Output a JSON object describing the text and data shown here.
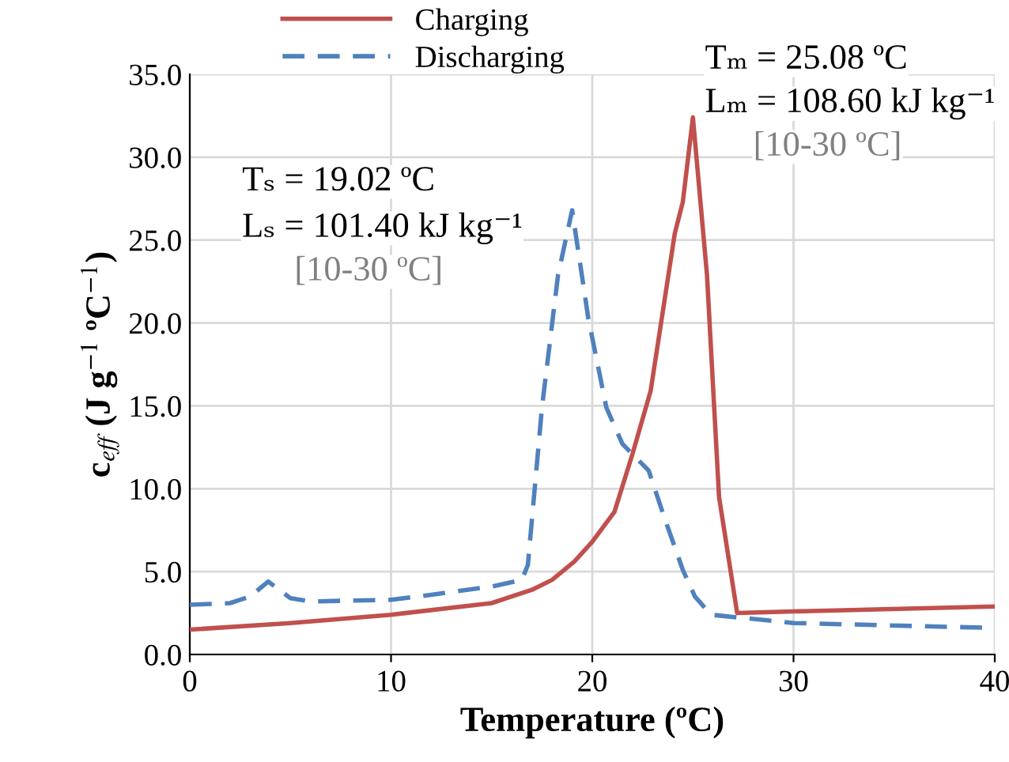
{
  "chart_data": {
    "type": "line",
    "xlabel": "Temperature (ºC)",
    "ylabel": "c$_{eff}$ (J g$^{−1}$ ºC$^{−1}$)",
    "xlim": [
      0,
      40
    ],
    "xticks": [
      0,
      10,
      20,
      30,
      40
    ],
    "ylim": [
      0,
      35
    ],
    "yticks": [
      {
        "value": 0,
        "label": "0.0"
      },
      {
        "value": 5,
        "label": "5.0"
      },
      {
        "value": 10,
        "label": "10.0"
      },
      {
        "value": 15,
        "label": "15.0"
      },
      {
        "value": 20,
        "label": "20.0"
      },
      {
        "value": 25,
        "label": "25.0"
      },
      {
        "value": 30,
        "label": "30.0"
      },
      {
        "value": 35,
        "label": "35.0"
      }
    ],
    "grid": true,
    "legend": "top left",
    "series": [
      {
        "name": "Charging",
        "color": "#c0504d",
        "line_style": "solid",
        "x": [
          0,
          5,
          10,
          15,
          17,
          18,
          19.1,
          20,
          21.1,
          22,
          22.9,
          24.1,
          24.5,
          25,
          25.7,
          26.3,
          27.2,
          30,
          40
        ],
        "values": [
          1.5,
          1.9,
          2.4,
          3.1,
          3.9,
          4.5,
          5.6,
          6.8,
          8.6,
          12.1,
          15.9,
          25.4,
          27.3,
          32.4,
          22.9,
          9.5,
          2.5,
          2.6,
          2.9
        ]
      },
      {
        "name": "Discharging",
        "color": "#4f81bd",
        "line_style": "dashed",
        "x": [
          0,
          2,
          3,
          3.9,
          5,
          6,
          10,
          12,
          15,
          16.5,
          16.8,
          17.5,
          18.3,
          19,
          19.8,
          20.7,
          21.5,
          22.8,
          23.6,
          24.5,
          25.1,
          25.9,
          30,
          40
        ],
        "values": [
          3.0,
          3.1,
          3.5,
          4.4,
          3.4,
          3.2,
          3.3,
          3.6,
          4.1,
          4.5,
          5.4,
          14.9,
          22.9,
          26.8,
          20.3,
          14.9,
          12.7,
          11.1,
          8.2,
          5.1,
          3.5,
          2.4,
          1.9,
          1.6
        ]
      }
    ],
    "annotations": [
      "Tₛ = 19.02 ºC",
      "Lₛ = 101.40 kJ kg⁻¹",
      "[10-30 ºC]",
      "Tₘ = 25.08 ºC",
      "Lₘ = 108.60 kJ kg⁻¹",
      "[10-30 ºC]"
    ]
  }
}
